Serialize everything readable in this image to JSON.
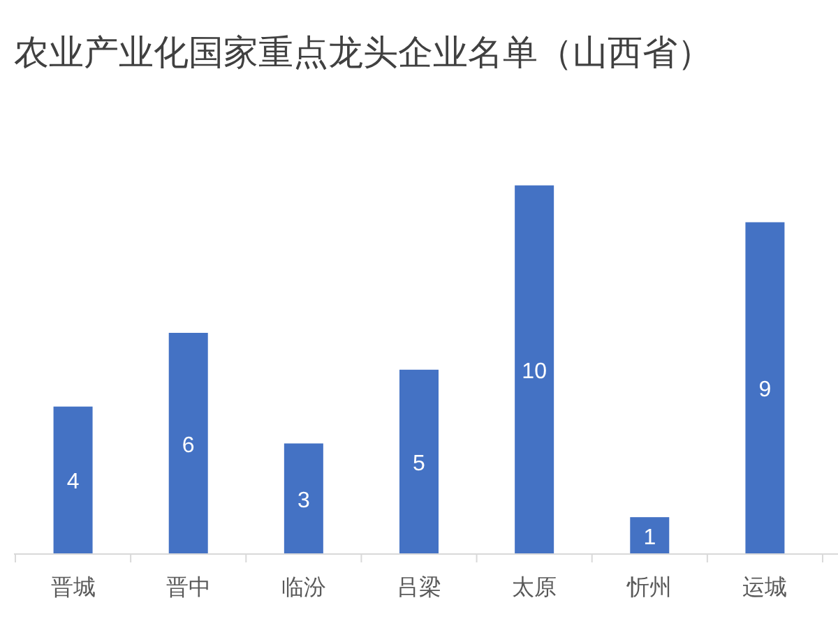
{
  "chart_data": {
    "type": "bar",
    "title": "农业产业化国家重点龙头企业名单（山西省）",
    "categories": [
      "晋城",
      "晋中",
      "临汾",
      "吕梁",
      "太原",
      "忻州",
      "运城"
    ],
    "values": [
      4,
      6,
      3,
      5,
      10,
      1,
      9
    ],
    "color": "#4472c4",
    "data_labels": true,
    "grid": false,
    "legend": false
  }
}
